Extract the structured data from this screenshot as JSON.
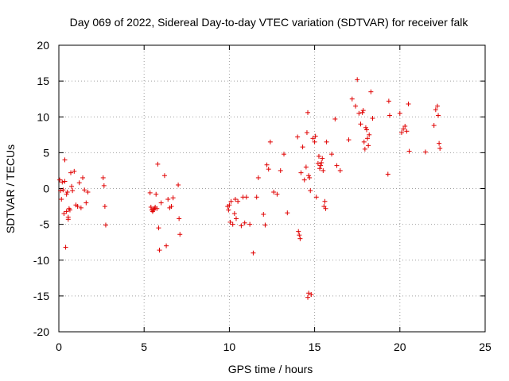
{
  "chart_data": {
    "type": "scatter",
    "title": "Day 069 of 2022, Sidereal Day-to-day VTEC variation (SDTVAR) for receiver falk",
    "xlabel": "GPS time / hours",
    "ylabel": "SDTVAR / TECUs",
    "xlim": [
      0,
      25
    ],
    "ylim": [
      -20,
      20
    ],
    "xticks": [
      0,
      5,
      10,
      15,
      20,
      25
    ],
    "yticks": [
      -20,
      -15,
      -10,
      -5,
      0,
      5,
      10,
      15,
      20
    ],
    "grid": true,
    "marker": "plus",
    "color": "#e00000",
    "series": [
      {
        "name": "SDTVAR",
        "x": [
          0.05,
          0.1,
          0.15,
          0.2,
          0.25,
          0.3,
          0.35,
          0.4,
          0.45,
          0.5,
          0.55,
          0.6,
          0.7,
          0.8,
          0.9,
          1.0,
          1.1,
          1.2,
          1.3,
          1.4,
          1.5,
          1.6,
          1.7,
          0.35,
          0.45,
          0.55,
          0.65,
          0.75,
          2.6,
          2.65,
          2.7,
          2.75,
          5.35,
          5.4,
          5.45,
          5.5,
          5.55,
          5.6,
          5.65,
          5.7,
          5.75,
          5.8,
          5.85,
          5.9,
          6.0,
          6.2,
          6.3,
          6.4,
          6.5,
          6.6,
          6.7,
          7.0,
          7.05,
          7.1,
          9.9,
          9.95,
          10.0,
          10.05,
          10.1,
          10.2,
          10.3,
          10.35,
          10.4,
          10.5,
          10.7,
          10.8,
          10.9,
          11.0,
          11.2,
          11.4,
          11.6,
          11.7,
          12.0,
          12.1,
          12.2,
          12.3,
          12.4,
          12.6,
          12.8,
          13.0,
          13.2,
          13.4,
          14.0,
          14.05,
          14.1,
          14.15,
          14.2,
          14.3,
          14.4,
          14.5,
          14.55,
          14.6,
          14.65,
          14.7,
          14.75,
          14.8,
          14.9,
          15.0,
          15.05,
          15.1,
          15.2,
          15.25,
          15.3,
          15.35,
          15.4,
          15.45,
          15.5,
          15.55,
          15.6,
          15.65,
          15.7,
          16.0,
          16.2,
          16.3,
          16.5,
          17.0,
          17.2,
          17.4,
          17.5,
          17.6,
          17.7,
          17.8,
          17.85,
          17.9,
          17.95,
          18.0,
          18.05,
          18.1,
          18.15,
          18.2,
          18.3,
          18.4,
          19.3,
          19.35,
          19.4,
          20.0,
          20.1,
          20.2,
          20.3,
          20.4,
          20.5,
          20.55,
          21.5,
          22.0,
          22.1,
          22.2,
          22.25,
          22.3,
          22.35,
          14.6,
          14.65
        ],
        "y": [
          1.2,
          -0.3,
          -1.5,
          0.9,
          -0.2,
          -3.5,
          4.0,
          -8.2,
          -3.2,
          -0.5,
          -4.3,
          -2.8,
          2.2,
          -0.3,
          2.4,
          -2.3,
          -2.5,
          0.8,
          -2.7,
          1.5,
          -0.2,
          -2.0,
          -0.5,
          1.0,
          -0.8,
          -4.0,
          -3.0,
          0.3,
          1.5,
          0.4,
          -2.5,
          -5.1,
          -0.6,
          -2.6,
          -3.0,
          -3.2,
          -3.0,
          -2.8,
          -2.6,
          -0.8,
          -2.8,
          3.4,
          -5.5,
          -8.6,
          -2.0,
          1.8,
          -8.0,
          -1.5,
          -2.7,
          -2.5,
          -1.3,
          0.5,
          -4.2,
          -6.4,
          -2.5,
          -3.0,
          -2.3,
          -4.7,
          -1.8,
          -5.0,
          -3.5,
          -1.5,
          -4.2,
          -1.8,
          -5.2,
          -1.2,
          -4.8,
          -1.2,
          -5.0,
          -9.0,
          -1.2,
          1.5,
          -3.6,
          -5.1,
          3.3,
          2.7,
          6.5,
          -0.5,
          -0.8,
          2.5,
          4.8,
          -3.4,
          7.2,
          -6.0,
          -6.5,
          -7.0,
          2.2,
          5.8,
          1.2,
          3.0,
          7.8,
          10.6,
          1.8,
          1.5,
          -0.3,
          -14.8,
          7.0,
          6.5,
          7.3,
          -1.2,
          3.5,
          4.5,
          2.8,
          3.2,
          3.6,
          4.2,
          2.5,
          -2.5,
          -1.8,
          -2.8,
          6.5,
          4.8,
          9.7,
          3.2,
          2.5,
          6.8,
          12.5,
          11.5,
          15.2,
          10.5,
          9.0,
          10.6,
          10.9,
          6.5,
          5.5,
          8.5,
          8.2,
          7.0,
          6.0,
          7.5,
          13.5,
          9.8,
          2.0,
          12.2,
          10.2,
          10.5,
          7.8,
          8.3,
          8.7,
          8.0,
          11.8,
          5.2,
          5.1,
          8.8,
          11.0,
          11.5,
          10.2,
          6.3,
          5.6,
          -15.2,
          -14.6
        ]
      }
    ]
  }
}
